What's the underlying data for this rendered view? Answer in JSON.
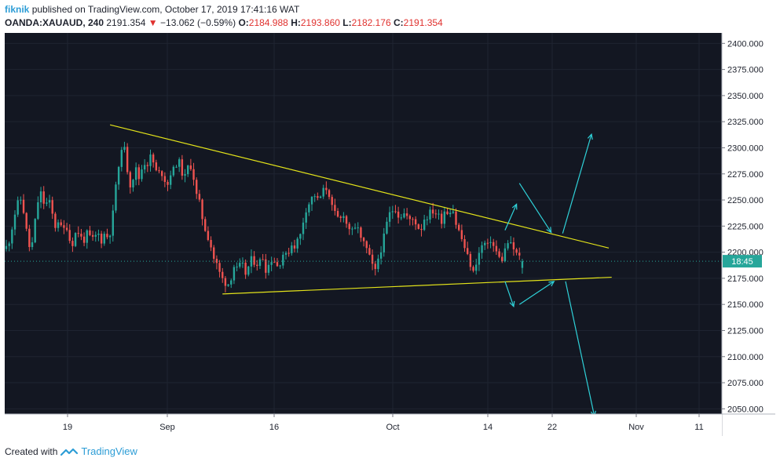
{
  "header": {
    "username": "fiknik",
    "published_text": "published on TradingView.com, October 17, 2019 17:41:16 WAT",
    "symbol": "OANDA:XAUAUD, 240",
    "last_price": "2191.354",
    "change": "−13.062 (−0.59%)",
    "open_label": "O:",
    "open": "2184.988",
    "high_label": "H:",
    "high": "2193.860",
    "low_label": "L:",
    "low": "2182.176",
    "close_label": "C:",
    "close": "2191.354"
  },
  "footer": {
    "created_with": "Created with",
    "brand": "TradingView"
  },
  "colors": {
    "background": "#131722",
    "up": "#26a69a",
    "down": "#ef5350",
    "trendline": "#e3e31a",
    "arrow": "#2fd1d8",
    "price_line": "#26a69a"
  },
  "chart_data": {
    "type": "candlestick",
    "y_range": [
      2045,
      2410
    ],
    "y_ticks": [
      "2400.000",
      "2375.000",
      "2350.000",
      "2325.000",
      "2300.000",
      "2275.000",
      "2250.000",
      "2225.000",
      "2200.000",
      "2175.000",
      "2150.000",
      "2125.000",
      "2100.000",
      "2075.000",
      "2050.000"
    ],
    "x_ticks": [
      "19",
      "Sep",
      "16",
      "Oct",
      "14",
      "22",
      "Nov",
      "11"
    ],
    "last_price_value": 2191.354,
    "countdown_label": "18:45",
    "close_series": [
      2205,
      2212,
      2230,
      2245,
      2252,
      2238,
      2215,
      2198,
      2225,
      2248,
      2258,
      2242,
      2252,
      2238,
      2224,
      2232,
      2218,
      2228,
      2212,
      2208,
      2222,
      2216,
      2210,
      2218,
      2214,
      2212,
      2220,
      2210,
      2218,
      2214,
      2222,
      2262,
      2278,
      2305,
      2295,
      2262,
      2270,
      2280,
      2268,
      2288,
      2282,
      2292,
      2285,
      2274,
      2278,
      2270,
      2265,
      2278,
      2280,
      2290,
      2276,
      2272,
      2285,
      2280,
      2256,
      2248,
      2230,
      2218,
      2210,
      2195,
      2188,
      2178,
      2172,
      2168,
      2175,
      2188,
      2182,
      2192,
      2178,
      2186,
      2195,
      2188,
      2190,
      2196,
      2182,
      2190,
      2195,
      2186,
      2190,
      2200,
      2195,
      2208,
      2205,
      2212,
      2218,
      2238,
      2245,
      2252,
      2255,
      2248,
      2258,
      2262,
      2255,
      2240,
      2235,
      2230,
      2238,
      2226,
      2222,
      2218,
      2228,
      2212,
      2208,
      2200,
      2190,
      2180,
      2195,
      2205,
      2222,
      2236,
      2240,
      2242,
      2232,
      2238,
      2235,
      2230,
      2232,
      2226,
      2220,
      2232,
      2234,
      2240,
      2238,
      2236,
      2230,
      2242,
      2236,
      2245,
      2228,
      2220,
      2210,
      2200,
      2190,
      2180,
      2192,
      2202,
      2210,
      2205,
      2212,
      2204,
      2198,
      2190,
      2202,
      2210,
      2206,
      2200,
      2196,
      2191.354
    ],
    "annotations": {
      "upper_trendline": {
        "from": {
          "bar": 36,
          "price": 2322
        },
        "to": {
          "bar": 209,
          "price": 2204
        }
      },
      "lower_trendline": {
        "from": {
          "bar": 75,
          "price": 2160
        },
        "to": {
          "bar": 210,
          "price": 2176
        }
      },
      "projection_arrows": [
        {
          "from": {
            "bar": 173,
            "price": 2221
          },
          "to": {
            "bar": 177,
            "price": 2246
          }
        },
        {
          "from": {
            "bar": 178,
            "price": 2266
          },
          "to": {
            "bar": 189,
            "price": 2219
          }
        },
        {
          "from": {
            "bar": 193,
            "price": 2218
          },
          "to": {
            "bar": 203,
            "price": 2313
          }
        },
        {
          "from": {
            "bar": 173,
            "price": 2172
          },
          "to": {
            "bar": 176,
            "price": 2148
          }
        },
        {
          "from": {
            "bar": 178,
            "price": 2150
          },
          "to": {
            "bar": 190,
            "price": 2172
          }
        },
        {
          "from": {
            "bar": 194,
            "price": 2172
          },
          "to": {
            "bar": 204,
            "price": 2043
          }
        }
      ]
    }
  }
}
